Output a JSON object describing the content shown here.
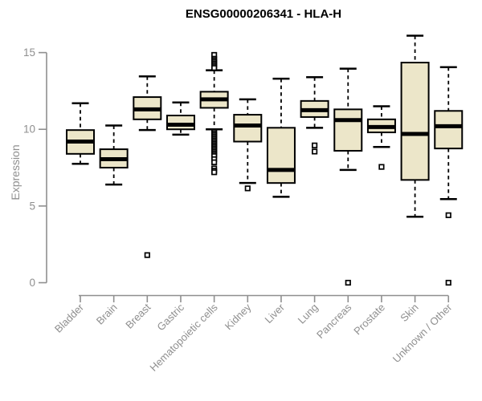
{
  "title": "ENSG00000206341 - HLA-H",
  "chart_data": {
    "type": "boxplot",
    "title": "ENSG00000206341 - HLA-H",
    "xlabel": "",
    "ylabel": "Expression",
    "ylim": [
      0,
      15
    ],
    "yticks": [
      0,
      5,
      10,
      15
    ],
    "grid": false,
    "legend": "none",
    "colors": {
      "box_fill": "#ECE6C9",
      "box_stroke": "#000000",
      "median": "#000000",
      "axis": "#8f8f8f",
      "title": "#000000"
    },
    "categories": [
      "Bladder",
      "Brain",
      "Breast",
      "Gastric",
      "Hematopoietic cells",
      "Kidney",
      "Liver",
      "Lung",
      "Pancreas",
      "Prostate",
      "Skin",
      "Unknown / Other"
    ],
    "series": [
      {
        "label": "Bladder",
        "low": 7.75,
        "q1": 8.4,
        "median": 9.2,
        "q3": 9.95,
        "high": 11.7,
        "outliers": []
      },
      {
        "label": "Brain",
        "low": 6.4,
        "q1": 7.5,
        "median": 8.05,
        "q3": 8.7,
        "high": 10.25,
        "outliers": []
      },
      {
        "label": "Breast",
        "low": 9.95,
        "q1": 10.65,
        "median": 11.3,
        "q3": 12.1,
        "high": 13.45,
        "outliers": [
          1.8
        ]
      },
      {
        "label": "Gastric",
        "low": 9.65,
        "q1": 10.0,
        "median": 10.3,
        "q3": 10.9,
        "high": 11.75,
        "outliers": []
      },
      {
        "label": "Hematopoietic cells",
        "low": 10.0,
        "q1": 11.4,
        "median": 11.95,
        "q3": 12.45,
        "high": 13.85,
        "outliers": [
          14.85,
          14.6,
          14.5,
          14.4,
          14.3,
          14.2,
          14.1,
          14.0,
          9.85,
          9.75,
          9.65,
          9.55,
          9.45,
          9.35,
          9.25,
          9.15,
          9.05,
          8.95,
          8.85,
          8.75,
          8.65,
          8.55,
          8.45,
          8.35,
          8.25,
          8.05,
          7.85,
          7.45,
          7.3,
          7.2
        ]
      },
      {
        "label": "Kidney",
        "low": 6.5,
        "q1": 9.2,
        "median": 10.25,
        "q3": 10.95,
        "high": 11.95,
        "outliers": [
          6.15
        ]
      },
      {
        "label": "Liver",
        "low": 5.6,
        "q1": 6.5,
        "median": 7.35,
        "q3": 10.1,
        "high": 13.3,
        "outliers": []
      },
      {
        "label": "Lung",
        "low": 10.1,
        "q1": 10.8,
        "median": 11.25,
        "q3": 11.85,
        "high": 13.4,
        "outliers": [
          8.95,
          8.55
        ]
      },
      {
        "label": "Pancreas",
        "low": 7.35,
        "q1": 8.6,
        "median": 10.6,
        "q3": 11.3,
        "high": 13.95,
        "outliers": [
          0
        ]
      },
      {
        "label": "Prostate",
        "low": 8.85,
        "q1": 9.8,
        "median": 10.15,
        "q3": 10.65,
        "high": 11.5,
        "outliers": [
          7.55
        ]
      },
      {
        "label": "Skin",
        "low": 4.3,
        "q1": 6.7,
        "median": 9.7,
        "q3": 14.35,
        "high": 16.1,
        "outliers": []
      },
      {
        "label": "Unknown / Other",
        "low": 5.45,
        "q1": 8.75,
        "median": 10.2,
        "q3": 11.2,
        "high": 14.05,
        "outliers": [
          4.4,
          0
        ]
      }
    ]
  }
}
